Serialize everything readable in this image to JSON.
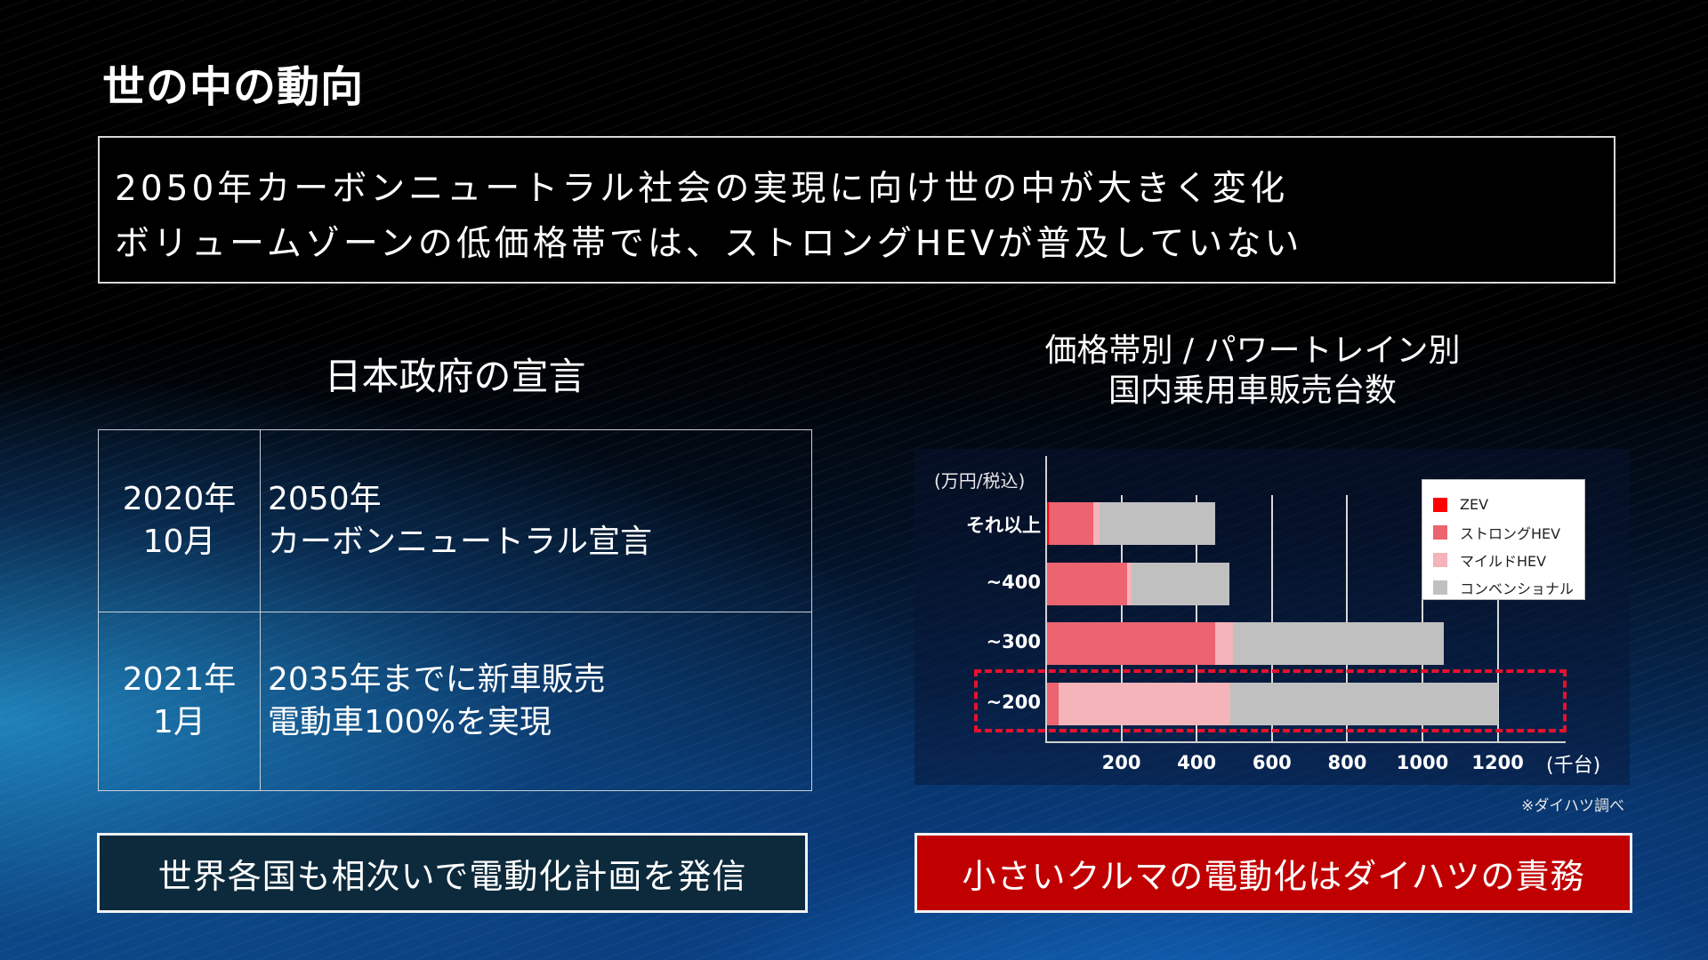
{
  "header": {
    "title": "世の中の動向"
  },
  "summary": {
    "lines": [
      "2050年カーボンニュートラル社会の実現に向け世の中が大きく変化",
      "ボリュームゾーンの低価格帯では、ストロングHEVが普及していない"
    ]
  },
  "government": {
    "title": "日本政府の宣言",
    "rows": [
      {
        "date_line1": "2020年",
        "date_line2": "10月",
        "desc_line1": "2050年",
        "desc_line2": "カーボンニュートラル宣言"
      },
      {
        "date_line1": "2021年",
        "date_line2": "1月",
        "desc_line1": "2035年までに新車販売",
        "desc_line2": "電動車100%を実現"
      }
    ]
  },
  "chart": {
    "title_line1": "価格帯別 / パワートレイン別",
    "title_line2": "国内乗用車販売台数",
    "unit_y": "(万円/税込)",
    "unit_x": "(千台)",
    "source_note": "※ダイハツ調べ",
    "legend": [
      {
        "label": "ZEV",
        "color": "#ff0000"
      },
      {
        "label": "ストロングHEV",
        "color": "#eb6470"
      },
      {
        "label": "マイルドHEV",
        "color": "#f4b4ba"
      },
      {
        "label": "コンベンショナル",
        "color": "#c0c0c0"
      }
    ]
  },
  "chart_data": {
    "type": "bar",
    "orientation": "horizontal",
    "stacked": true,
    "title": "価格帯別 / パワートレイン別 国内乗用車販売台数",
    "xlabel": "(千台)",
    "ylabel": "(万円/税込)",
    "categories": [
      "それ以上",
      "~400",
      "~300",
      "~200"
    ],
    "series": [
      {
        "name": "ZEV",
        "color": "#ff0000",
        "values": [
          8,
          0,
          0,
          0
        ]
      },
      {
        "name": "ストロングHEV",
        "color": "#eb6470",
        "values": [
          117,
          215,
          448,
          33
        ]
      },
      {
        "name": "マイルドHEV",
        "color": "#f4b4ba",
        "values": [
          16,
          12,
          48,
          456
        ]
      },
      {
        "name": "コンベンショナル",
        "color": "#c0c0c0",
        "values": [
          309,
          259,
          560,
          713
        ]
      }
    ],
    "totals": [
      450,
      486,
      1056,
      1202
    ],
    "xticks": [
      200,
      400,
      600,
      800,
      1000,
      1200
    ],
    "xlim": [
      0,
      1300
    ],
    "grid": "vertical",
    "legend_position": "upper right",
    "annotations": [
      "~200 price band highlighted with red dashed box",
      "※ダイハツ調べ"
    ]
  },
  "callouts": {
    "left": "世界各国も相次いで電動化計画を発信",
    "right": "小さいクルマの電動化はダイハツの責務"
  }
}
